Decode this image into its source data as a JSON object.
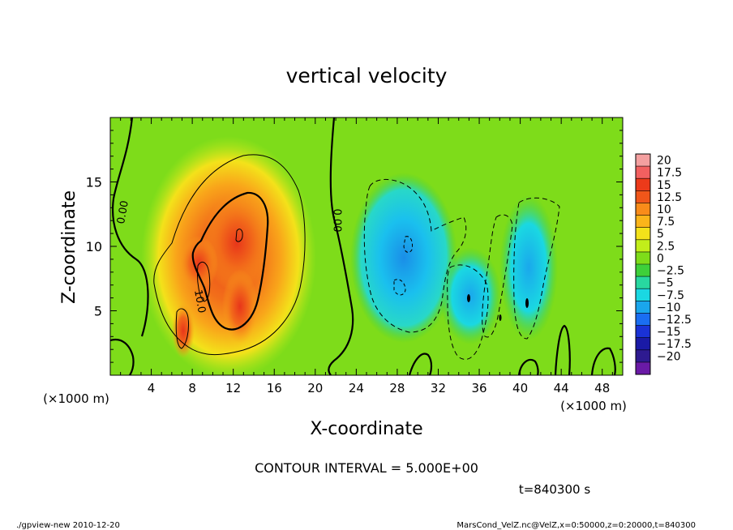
{
  "chart_data": {
    "type": "heatmap",
    "title": "vertical velocity",
    "xlabel": "X-coordinate",
    "ylabel": "Z-coordinate",
    "x_unit": "(×1000 m)",
    "y_unit": "(×1000 m)",
    "xlim": [
      0,
      50
    ],
    "ylim": [
      0,
      20
    ],
    "x_ticks": [
      "4",
      "8",
      "12",
      "16",
      "20",
      "24",
      "28",
      "32",
      "36",
      "40",
      "44",
      "48"
    ],
    "y_ticks": [
      "5",
      "10",
      "15"
    ],
    "contour_interval_text": "CONTOUR INTERVAL = 5.000E+00",
    "time_text": "t=840300 s",
    "contour_labels": [
      "0.00",
      "0.00",
      "10.0"
    ],
    "colorbar": {
      "labels": [
        "20",
        "17.5",
        "15",
        "12.5",
        "10",
        "7.5",
        "5",
        "2.5",
        "0",
        "−2.5",
        "−5",
        "−7.5",
        "−10",
        "−12.5",
        "−15",
        "−17.5",
        "−20"
      ],
      "colors": [
        "#f4a0a0",
        "#f26060",
        "#ec3a1a",
        "#f0561a",
        "#f98c1a",
        "#fbb51a",
        "#f3e21a",
        "#c2ee1a",
        "#7edc1a",
        "#3ed03a",
        "#28d8a0",
        "#1ad8e2",
        "#1aa6ec",
        "#1a6ef2",
        "#1a32d6",
        "#1a1aa6",
        "#2e1a90",
        "#6a1aa6"
      ]
    },
    "features": [
      {
        "name": "updraft",
        "x_center": 12,
        "z_center": 10,
        "max_value": 15
      },
      {
        "name": "downdraft",
        "x_center": 29,
        "z_center": 8,
        "min_value": -10
      },
      {
        "name": "downdraft",
        "x_center": 40,
        "z_center": 6,
        "min_value": -7.5
      }
    ]
  },
  "footer": {
    "left": "./gpview-new  2010-12-20",
    "right": "MarsCond_VelZ.nc@VelZ,x=0:50000,z=0:20000,t=840300"
  }
}
